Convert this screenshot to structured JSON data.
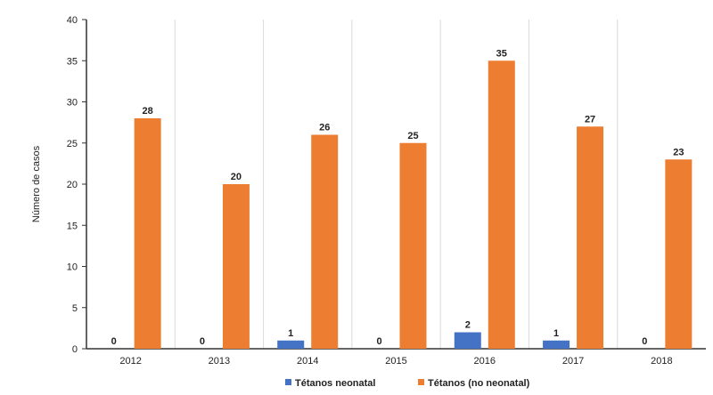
{
  "chart_data": {
    "type": "bar",
    "title": "",
    "xlabel": "",
    "ylabel": "Número de casos",
    "ylim": [
      0,
      40
    ],
    "yticks": [
      0,
      5,
      10,
      15,
      20,
      25,
      30,
      35,
      40
    ],
    "categories": [
      "2012",
      "2013",
      "2014",
      "2015",
      "2016",
      "2017",
      "2018"
    ],
    "series": [
      {
        "name": "Tétanos neonatal",
        "color": "#4472C4",
        "values": [
          0,
          0,
          1,
          0,
          2,
          1,
          0
        ]
      },
      {
        "name": "Tétanos (no neonatal)",
        "color": "#ED7D31",
        "values": [
          28,
          20,
          26,
          25,
          35,
          27,
          23
        ]
      }
    ],
    "grid": "vertical-category-separators",
    "legend": "bottom"
  }
}
